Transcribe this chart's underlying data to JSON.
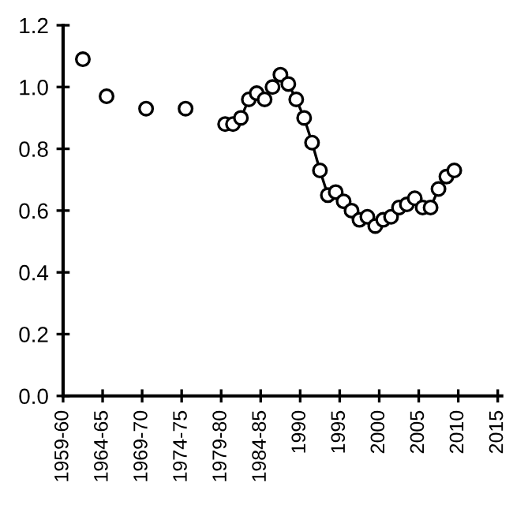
{
  "chart_data": {
    "type": "line",
    "marker": "circle",
    "grid": false,
    "legend": false,
    "xlim": [
      1960,
      2015.5
    ],
    "ylim": [
      0,
      1.2
    ],
    "xticks": [
      {
        "value": 1960,
        "label": "1959-60"
      },
      {
        "value": 1965,
        "label": "1964-65"
      },
      {
        "value": 1970,
        "label": "1969-70"
      },
      {
        "value": 1975,
        "label": "1974-75"
      },
      {
        "value": 1980,
        "label": "1979-80"
      },
      {
        "value": 1985,
        "label": "1984-85"
      },
      1990,
      1995,
      2000,
      2005,
      2010,
      2015
    ],
    "yticks": [
      {
        "value": 0,
        "label": "0.0"
      },
      {
        "value": 0.2,
        "label": "0.2"
      },
      {
        "value": 0.4,
        "label": "0.4"
      },
      {
        "value": 0.6,
        "label": "0.6"
      },
      {
        "value": 0.8,
        "label": "0.8"
      },
      {
        "value": 1.0,
        "label": "1.0"
      },
      {
        "value": 1.2,
        "label": "1.2"
      }
    ],
    "series": [
      {
        "type": "scatter",
        "color": "#ffffff",
        "x": [
          1962.5,
          1965.5,
          1970.5,
          1975.5
        ],
        "values": [
          1.09,
          0.97,
          0.93,
          0.93
        ]
      },
      {
        "color": "#ffffff",
        "x": [
          1980.5,
          1981.5,
          1982.5,
          1983.5,
          1984.5,
          1985.5,
          1986.5,
          1987.5,
          1988.5,
          1989.5,
          1990.5,
          1991.5,
          1992.5,
          1993.5,
          1994.5,
          1995.5,
          1996.5,
          1997.5,
          1998.5,
          1999.5,
          2000.5,
          2001.5,
          2002.5,
          2003.5,
          2004.5,
          2005.5,
          2006.5,
          2007.5,
          2008.5,
          2009.5
        ],
        "values": [
          0.88,
          0.88,
          0.9,
          0.96,
          0.98,
          0.96,
          1.0,
          1.04,
          1.01,
          0.96,
          0.9,
          0.82,
          0.73,
          0.65,
          0.66,
          0.63,
          0.6,
          0.57,
          0.58,
          0.55,
          0.57,
          0.58,
          0.61,
          0.62,
          0.64,
          0.61,
          0.61,
          0.67,
          0.71,
          0.73
        ]
      }
    ]
  }
}
